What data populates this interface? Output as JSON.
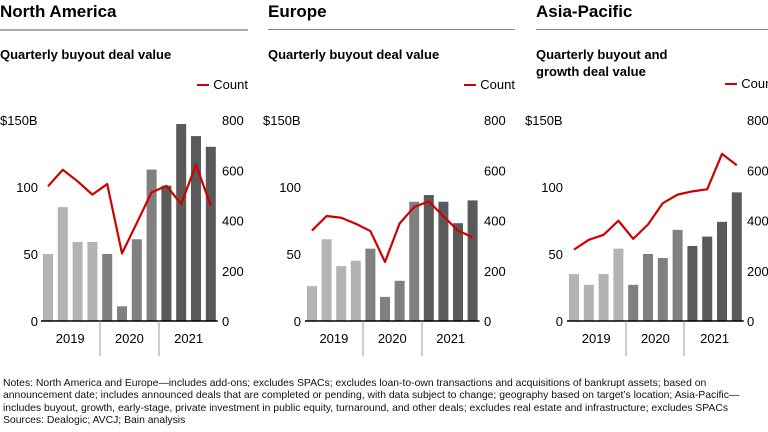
{
  "colors": {
    "year_2019": "#b3b3b3",
    "year_2020": "#808080",
    "year_2021": "#5a5a5a",
    "count_line": "#d00000"
  },
  "chart_data": [
    {
      "type": "bar+line",
      "title": "North America",
      "subtitle": "Quarterly buyout deal value",
      "legend": "Count",
      "left_axis": {
        "ticks": [
          "0",
          "50",
          "100",
          "$150B"
        ],
        "range": [
          0,
          150
        ]
      },
      "right_axis": {
        "ticks": [
          "0",
          "200",
          "400",
          "600",
          "800"
        ],
        "range": [
          0,
          800
        ]
      },
      "years": [
        "2019",
        "2020",
        "2021"
      ],
      "deal_value": [
        50,
        85,
        59,
        59,
        50,
        11,
        61,
        113,
        101,
        147,
        138,
        130
      ],
      "count": [
        536,
        602,
        556,
        503,
        545,
        269,
        390,
        512,
        538,
        466,
        622,
        459
      ]
    },
    {
      "type": "bar+line",
      "title": "Europe",
      "subtitle": "Quarterly buyout deal value",
      "legend": "Count",
      "left_axis": {
        "ticks": [
          "0",
          "50",
          "100",
          "$150B"
        ],
        "range": [
          0,
          150
        ]
      },
      "right_axis": {
        "ticks": [
          "0",
          "200",
          "400",
          "600",
          "800"
        ],
        "range": [
          0,
          800
        ]
      },
      "years": [
        "2019",
        "2020",
        "2021"
      ],
      "deal_value": [
        26,
        61,
        41,
        45,
        54,
        18,
        30,
        89,
        94,
        89,
        73,
        90
      ],
      "count": [
        360,
        418,
        411,
        387,
        358,
        235,
        388,
        454,
        476,
        417,
        360,
        333
      ]
    },
    {
      "type": "bar+line",
      "title": "Asia-Pacific",
      "subtitle": "Quarterly buyout and growth deal value",
      "legend": "Count",
      "left_axis": {
        "ticks": [
          "0",
          "50",
          "100",
          "$150B"
        ],
        "range": [
          0,
          150
        ]
      },
      "right_axis": {
        "ticks": [
          "0",
          "200",
          "400",
          "600",
          "800"
        ],
        "range": [
          0,
          800
        ]
      },
      "years": [
        "2019",
        "2020",
        "2021"
      ],
      "deal_value": [
        35,
        27,
        35,
        54,
        27,
        50,
        47,
        68,
        56,
        63,
        74,
        96
      ],
      "count": [
        284,
        323,
        343,
        399,
        327,
        384,
        469,
        503,
        516,
        524,
        665,
        620
      ]
    }
  ],
  "notes": "Notes: North America and Europe—includes add-ons; excludes SPACs; excludes loan-to-own transactions and acquisitions of bankrupt assets; based on announcement date; includes announced deals that are completed or pending, with data subject to change; geography based on target’s location; Asia-Pacific—includes buyout, growth, early-stage, private investment in public equity, turnaround, and other deals; excludes real estate and infrastructure; excludes SPACs",
  "sources": "Sources: Dealogic; AVCJ; Bain analysis"
}
